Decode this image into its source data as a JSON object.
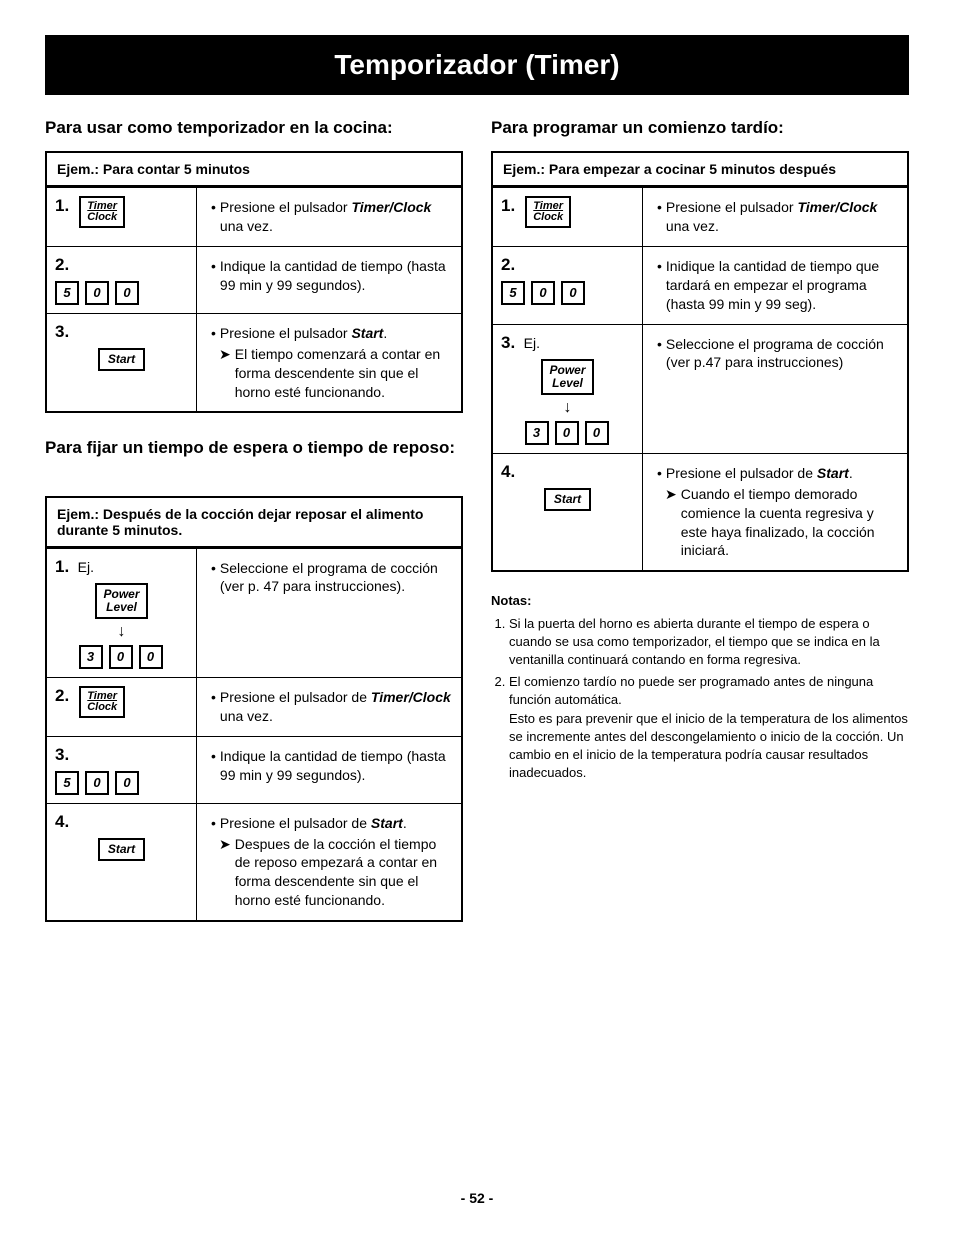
{
  "title": "Temporizador (Timer)",
  "pageNumber": "- 52 -",
  "left": {
    "sec1": {
      "heading": "Para usar como temporizador en la cocina:",
      "example": "Ejem.: Para contar 5 minutos",
      "steps": [
        {
          "num": "1.",
          "desc_prefix": "Presione el pulsador ",
          "desc_bold": "Timer/Clock",
          "desc_suffix": " una vez."
        },
        {
          "num": "2.",
          "desc": "Indique la cantidad de tiempo (hasta 99 min y 99 segundos)."
        },
        {
          "num": "3.",
          "desc_prefix": "Presione el pulsador ",
          "desc_bold": "Start",
          "desc_suffix": ".",
          "arrow": "El tiempo comenzará a contar en forma descendente sin que el horno esté funcionando."
        }
      ]
    },
    "sec2": {
      "heading": "Para fijar un tiempo de espera o tiempo de reposo:",
      "example": "Ejem.: Después de la cocción dejar reposar el alimento durante 5 minutos.",
      "steps": [
        {
          "num": "1.",
          "ej": "Ej.",
          "desc": "Seleccione el programa de cocción (ver p. 47 para instrucciones)."
        },
        {
          "num": "2.",
          "desc_prefix": "Presione el pulsador de ",
          "desc_bold": "Timer/Clock",
          "desc_suffix": " una vez."
        },
        {
          "num": "3.",
          "desc": "Indique la cantidad de tiempo (hasta 99 min y 99 segundos)."
        },
        {
          "num": "4.",
          "desc_prefix": "Presione el pulsador de ",
          "desc_bold": "Start",
          "desc_suffix": ".",
          "arrow": "Despues de la cocción el tiempo de reposo empezará a contar en forma descendente sin que el horno esté funcionando."
        }
      ]
    }
  },
  "right": {
    "sec1": {
      "heading": "Para programar un comienzo tardío:",
      "example": "Ejem.: Para empezar a cocinar 5 minutos después",
      "steps": [
        {
          "num": "1.",
          "desc_prefix": "Presione el pulsador ",
          "desc_bold": "Timer/Clock",
          "desc_suffix": " una vez."
        },
        {
          "num": "2.",
          "desc": "Inidique la cantidad de tiempo que tardará en empezar el programa (hasta 99 min y 99 seg)."
        },
        {
          "num": "3.",
          "ej": "Ej.",
          "desc": "Seleccione el programa de cocción (ver p.47 para instrucciones)"
        },
        {
          "num": "4.",
          "desc_prefix": "Presione el pulsador de ",
          "desc_bold": "Start",
          "desc_suffix": ".",
          "arrow": "Cuando el tiempo demorado comience la cuenta regresiva y este haya finalizado, la cocción iniciará."
        }
      ]
    },
    "notes": {
      "heading": "Notas:",
      "items": [
        "Si la puerta del horno es abierta durante el tiempo de espera o cuando se usa como temporizador, el tiempo que se indica en la ventanilla continuará contando en forma regresiva.",
        "El comienzo tardío no puede ser programado antes de ninguna función automática.\nEsto es para prevenir que el inicio de la temperatura de los alimentos se incremente antes del descongelamiento o inicio de la cocción. Un cambio en el inicio de la temperatura podría causar resultados inadecuados."
      ]
    }
  },
  "labels": {
    "timer_top": "Timer",
    "timer_bot": "Clock",
    "start": "Start",
    "power": "Power",
    "level": "Level",
    "digits500": [
      "5",
      "0",
      "0"
    ],
    "digits300": [
      "3",
      "0",
      "0"
    ]
  }
}
